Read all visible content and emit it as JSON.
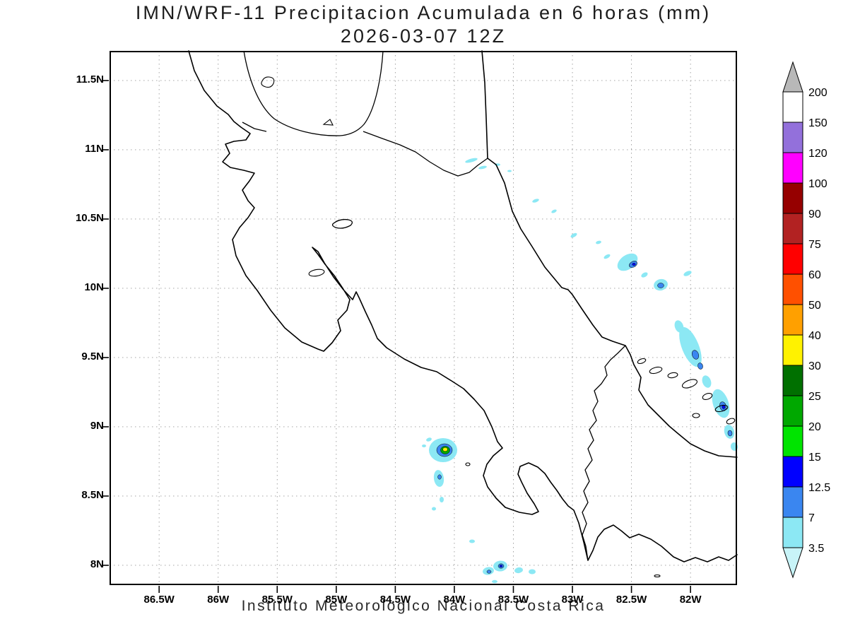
{
  "title": {
    "line1": "IMN/WRF-11 Precipitacion Acumulada en 6 horas (mm)",
    "line2": "2026-03-07 12Z"
  },
  "footer": "Instituto Meteorologico Nacional Costa Rica",
  "axes": {
    "lat_ticks": [
      "11.5N",
      "11N",
      "10.5N",
      "10N",
      "9.5N",
      "9N",
      "8.5N",
      "8N"
    ],
    "lon_ticks": [
      "86.5W",
      "86W",
      "85.5W",
      "85W",
      "84.5W",
      "84W",
      "83.5W",
      "83W",
      "82.5W",
      "82W"
    ]
  },
  "colorbar": {
    "labels": [
      "200",
      "150",
      "120",
      "100",
      "90",
      "75",
      "60",
      "50",
      "40",
      "30",
      "25",
      "20",
      "15",
      "12.5",
      "7",
      "3.5"
    ],
    "box_colors_top_to_bottom": [
      "#ffffff",
      "#9370db",
      "#ff00ff",
      "#960000",
      "#b22222",
      "#ff0000",
      "#ff5000",
      "#ffa000",
      "#fff200",
      "#007000",
      "#00a800",
      "#00e400",
      "#0000ff",
      "#3a86f0",
      "#8ce8f4"
    ],
    "arrow_top_color": "#b8b8b8",
    "arrow_bottom_color": "#c8f4f8"
  },
  "precipitation": {
    "units": "mm",
    "areas": [
      {
        "area": "Caribbean offshore band from ~11N 83.9W southeast to ~8.7N 81.7W",
        "intensity_mm": "mostly 3.5-12.5 with small 12.5-15 cores"
      },
      {
        "area": "South Pacific inland cluster near 84.1W 8.8N",
        "intensity_mm": "yellow core 30-40 ringed by 15-25 green and 3.5-12.5 blues"
      },
      {
        "area": "Southern offshore cluster near 83.5-84.2W around 8N",
        "intensity_mm": "3.5-12.5 with small blue cores"
      }
    ]
  }
}
